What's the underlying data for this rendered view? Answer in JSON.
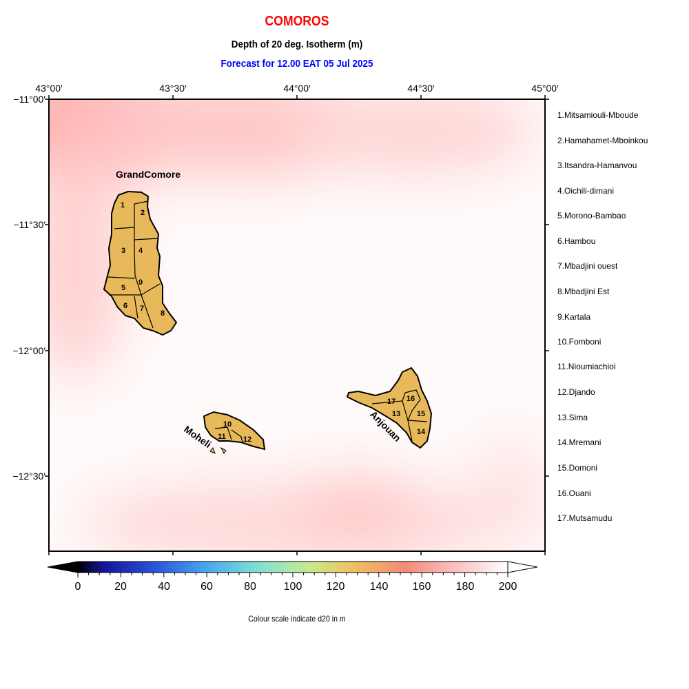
{
  "title": "COMOROS",
  "subtitle": "Depth of 20 deg. Isotherm (m)",
  "forecast": "Forecast for  12.00 EAT 05 Jul 2025",
  "colorscale_note": "Colour scale indicate d20 in m",
  "colors": {
    "title": "#ff0000",
    "forecast": "#0000ff",
    "land": "#e8b95a",
    "sea_shallow": "#ffb0b0"
  },
  "lon_labels": [
    "43°00'",
    "43°30'",
    "44°00'",
    "44°30'",
    "45°00'"
  ],
  "lat_labels": [
    "−11°00'",
    "−11°30'",
    "−12°00'",
    "−12°30'"
  ],
  "colorbar": {
    "ticks": [
      "0",
      "20",
      "40",
      "60",
      "80",
      "100",
      "120",
      "140",
      "160",
      "180",
      "200"
    ],
    "min": 0,
    "max": 200,
    "stops": [
      "#000000",
      "#1a1aa8",
      "#2a64e0",
      "#4fb7ee",
      "#8fe8c8",
      "#d8e884",
      "#f3b35c",
      "#f58a78",
      "#fbbcbc",
      "#ffffff"
    ]
  },
  "islands": {
    "grand_comore": "GrandComore",
    "moheli": "Moheli",
    "anjouan": "Anjouan"
  },
  "region_numbers": [
    "1",
    "2",
    "3",
    "4",
    "5",
    "6",
    "7",
    "8",
    "9",
    "10",
    "11",
    "12",
    "13",
    "14",
    "15",
    "16",
    "17"
  ],
  "regions": [
    "1.Mitsamiouli-Mboude",
    "2.Hamahamet-Mboinkou",
    "3.Itsandra-Hamanvou",
    "4.Oichili-dimani",
    "5.Morono-Bambao",
    "6.Hambou",
    "7.Mbadjini ouest",
    "8.Mbadjini Est",
    "9.Kartala",
    "10.Fomboni",
    "11.Nioumiachioi",
    "12.Djando",
    "13.Sima",
    "14.Mremani",
    "15.Domoni",
    "16.Ouani",
    "17.Mutsamudu"
  ]
}
